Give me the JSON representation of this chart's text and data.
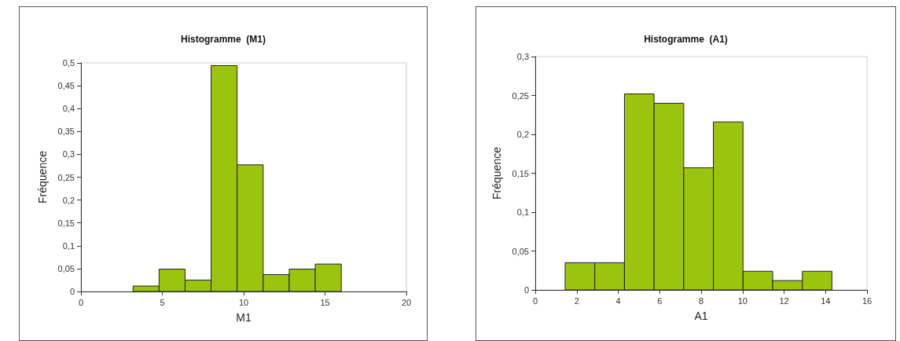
{
  "chart_data": [
    {
      "type": "histogram",
      "title": "Histogramme  (M1)",
      "xlabel": "M1",
      "ylabel": "Fréquence",
      "bins": [
        3.2,
        4.8,
        6.4,
        8,
        9.6,
        11.2,
        12.8,
        14.4,
        16
      ],
      "values": [
        0.012,
        0.049,
        0.025,
        0.494,
        0.277,
        0.037,
        0.049,
        0.06
      ],
      "color": "#9bc40e",
      "xlim": [
        0,
        20
      ],
      "xticks": [
        0,
        5,
        10,
        15,
        20
      ],
      "ylim": [
        0,
        0.5
      ],
      "yticks": [
        0,
        {
          "value": 0.05,
          "label": "0,05"
        },
        {
          "value": 0.1,
          "label": "0,1"
        },
        {
          "value": 0.15,
          "label": "0,15"
        },
        {
          "value": 0.2,
          "label": "0,2"
        },
        {
          "value": 0.25,
          "label": "0,25"
        },
        {
          "value": 0.3,
          "label": "0,3"
        },
        {
          "value": 0.35,
          "label": "0,35"
        },
        {
          "value": 0.4,
          "label": "0,4"
        },
        {
          "value": 0.45,
          "label": "0,45"
        },
        {
          "value": 0.5,
          "label": "0,5"
        }
      ],
      "grid": false
    },
    {
      "type": "histogram",
      "title": "Histogramme  (A1)",
      "xlabel": "A1",
      "ylabel": "Fréquence",
      "bins": [
        1.44,
        2.87,
        4.3,
        5.73,
        7.16,
        8.59,
        10.02,
        11.45,
        12.88,
        14.31
      ],
      "values": [
        0.035,
        0.035,
        0.252,
        0.24,
        0.157,
        0.216,
        0.024,
        0.012,
        0.024
      ],
      "color": "#9bc40e",
      "xlim": [
        0,
        16
      ],
      "xticks": [
        0,
        2,
        4,
        6,
        8,
        10,
        12,
        14,
        16
      ],
      "ylim": [
        0,
        0.3
      ],
      "yticks": [
        0,
        {
          "value": 0.05,
          "label": "0,05"
        },
        {
          "value": 0.1,
          "label": "0,1"
        },
        {
          "value": 0.15,
          "label": "0,15"
        },
        {
          "value": 0.2,
          "label": "0,2"
        },
        {
          "value": 0.25,
          "label": "0,25"
        },
        {
          "value": 0.3,
          "label": "0,3"
        }
      ],
      "grid": false
    }
  ]
}
